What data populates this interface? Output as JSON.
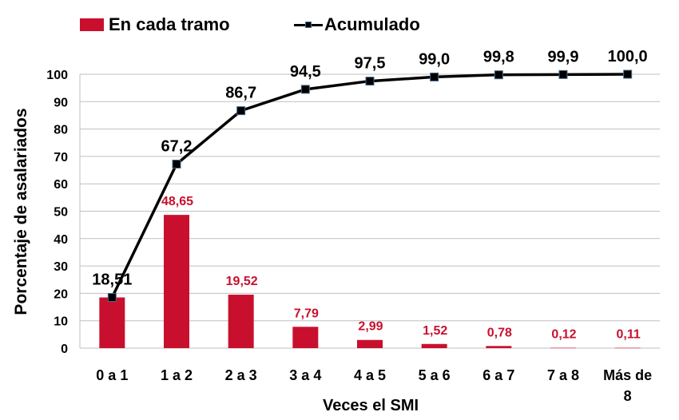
{
  "chart_data": {
    "type": "bar",
    "categories": [
      "0 a 1",
      "1 a 2",
      "2 a 3",
      "3 a 4",
      "4 a 5",
      "5 a 6",
      "6 a 7",
      "7 a 8",
      "Más de 8"
    ],
    "series": [
      {
        "name": "En cada tramo",
        "type": "bar",
        "values": [
          18.51,
          48.65,
          19.52,
          7.79,
          2.99,
          1.52,
          0.78,
          0.12,
          0.11
        ],
        "labels": [
          "18,51",
          "48,65",
          "19,52",
          "7,79",
          "2,99",
          "1,52",
          "0,78",
          "0,12",
          "0,11"
        ]
      },
      {
        "name": "Acumulado",
        "type": "line",
        "values": [
          18.51,
          67.2,
          86.7,
          94.5,
          97.5,
          99.0,
          99.8,
          99.9,
          100.0
        ],
        "labels": [
          "18,51",
          "67,2",
          "86,7",
          "94,5",
          "97,5",
          "99,0",
          "99,8",
          "99,9",
          "100,0"
        ]
      }
    ],
    "xlabel": "Veces el SMI",
    "ylabel": "Porcentaje de asalariados",
    "ylim": [
      0,
      100
    ],
    "yticks": [
      0,
      10,
      20,
      30,
      40,
      50,
      60,
      70,
      80,
      90,
      100
    ],
    "grid": true,
    "legend": "top-left",
    "colors": {
      "bar": "#c8102e",
      "line": "#000000",
      "marker_edge": "#4a6a8a",
      "grid": "#bfbfbf"
    }
  }
}
